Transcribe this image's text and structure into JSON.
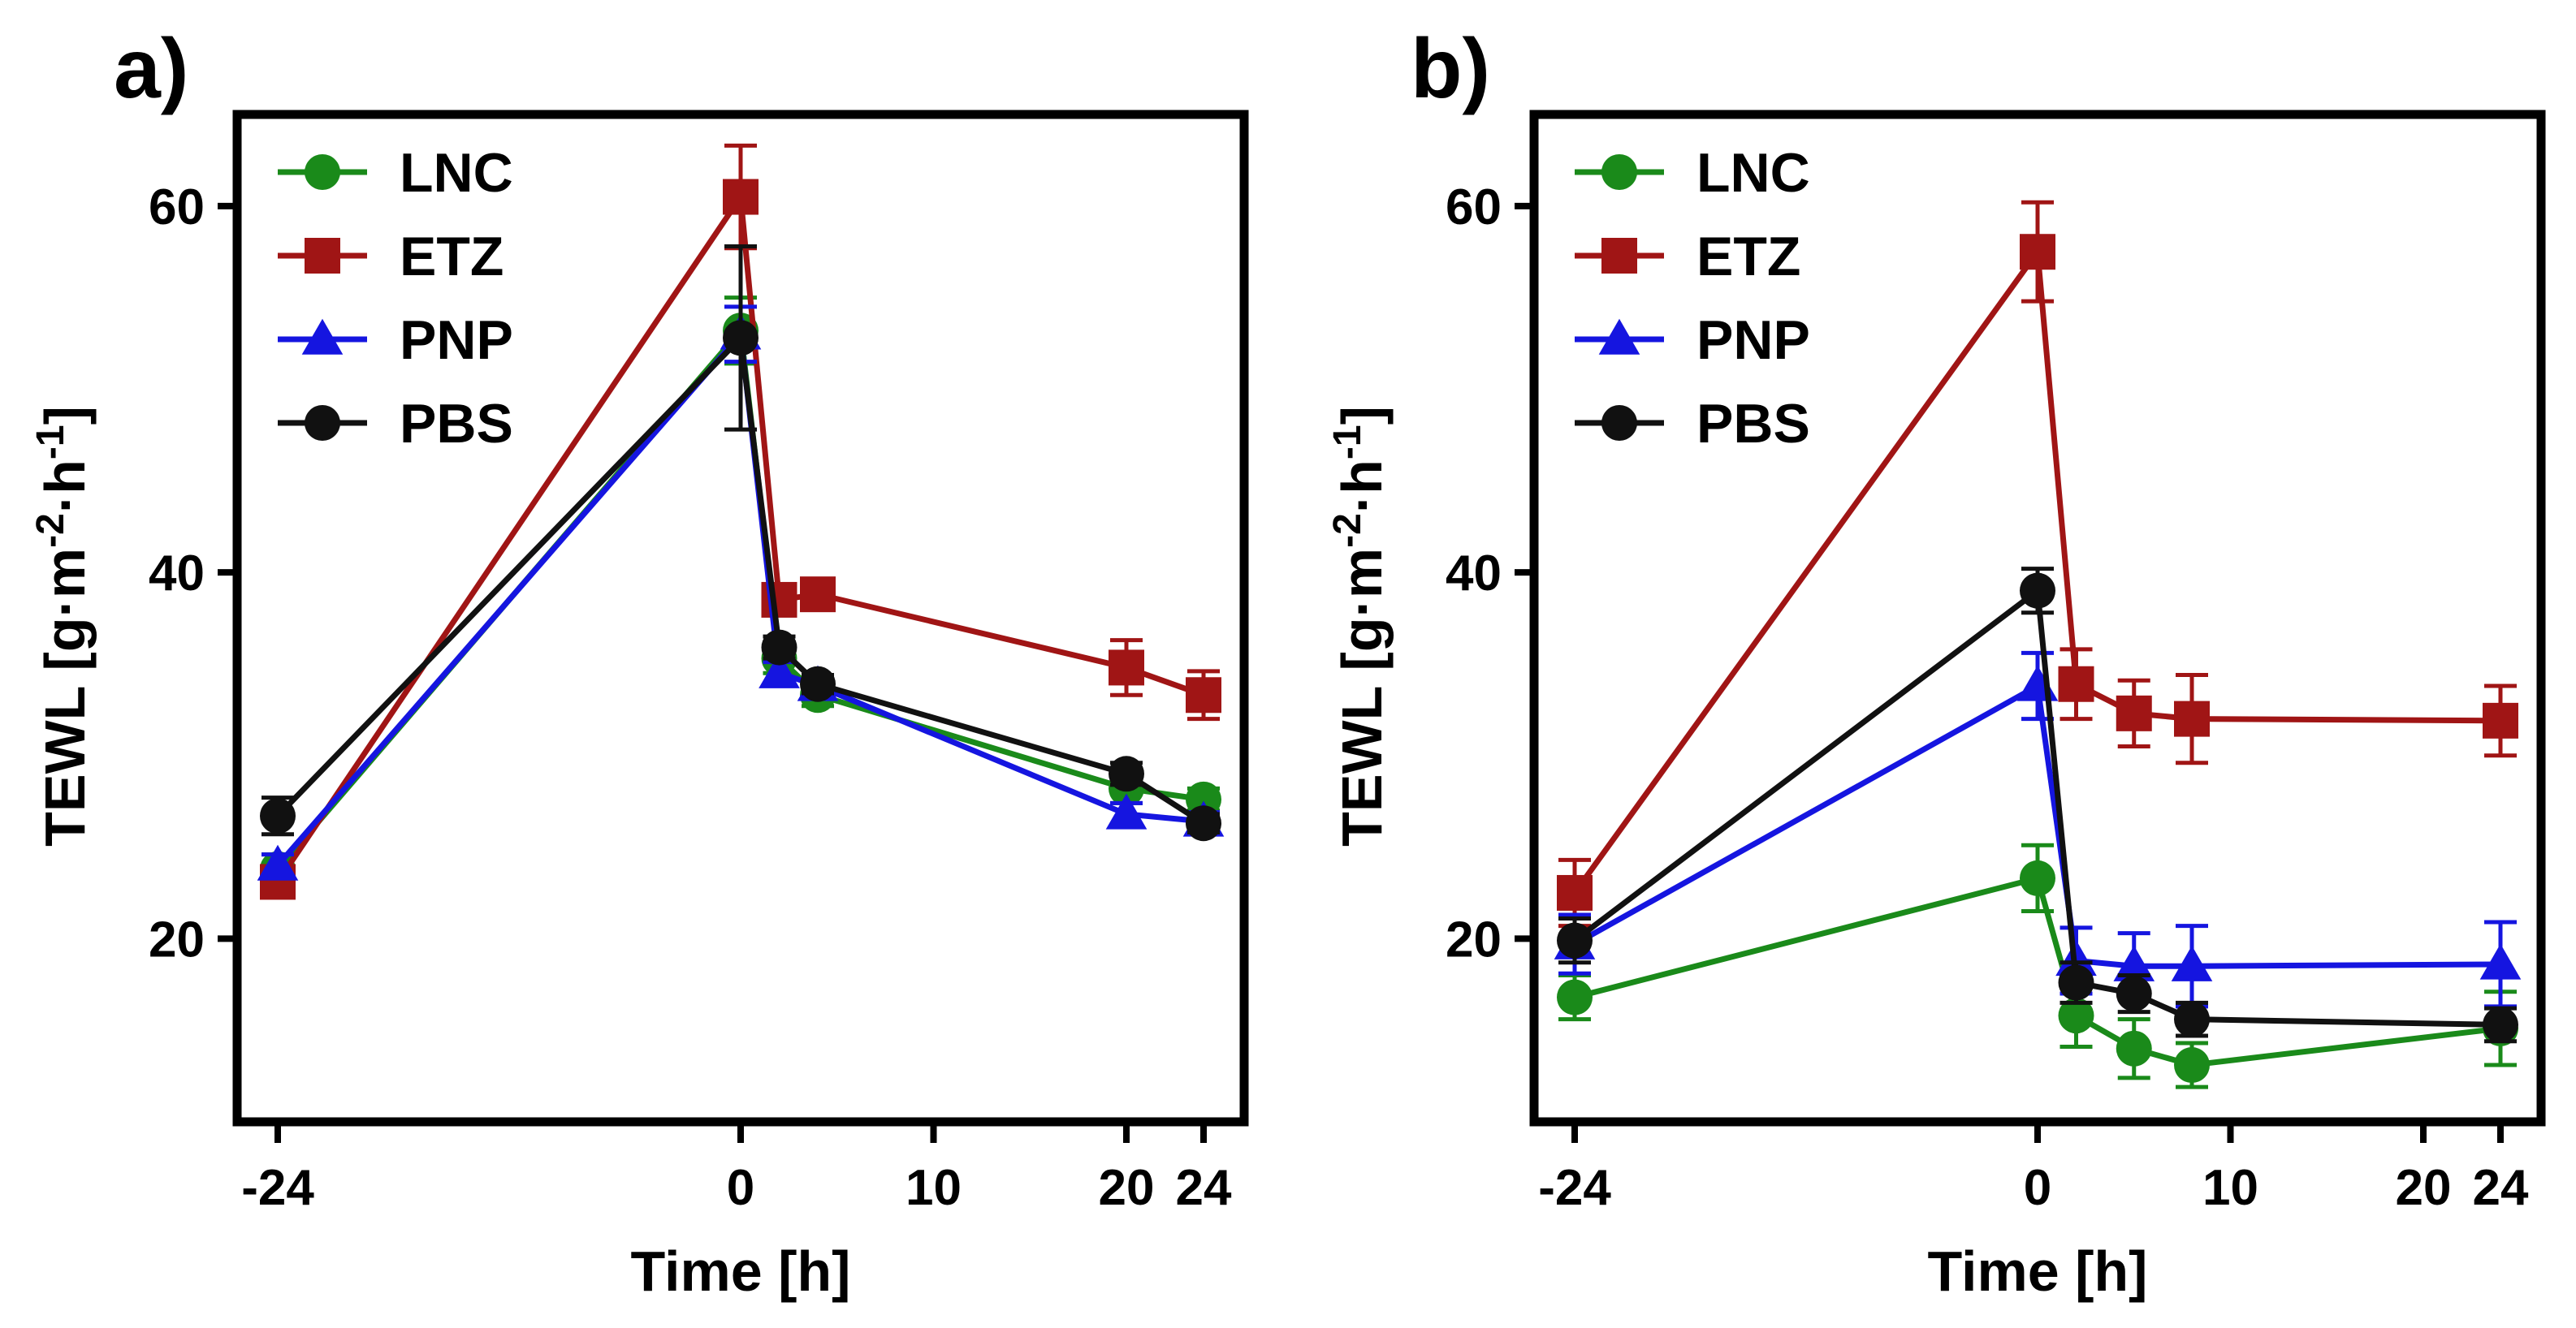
{
  "chart_data": [
    {
      "panel_label": "a)",
      "type": "line",
      "xlabel": "Time [h]",
      "ylabel_parts": [
        "TEWL [g·m",
        "-2",
        "·h",
        "-1",
        "]"
      ],
      "xlim": [
        -24,
        24
      ],
      "ylim": [
        10,
        65
      ],
      "xticks": [
        -24,
        0,
        10,
        20,
        24
      ],
      "yticks": [
        20,
        40,
        60
      ],
      "legend_position": "top-left",
      "series": [
        {
          "name": "LNC",
          "color": "#1a8a1a",
          "marker": "circle",
          "x": [
            -24,
            0,
            2,
            4,
            20,
            24
          ],
          "y": [
            23.8,
            53.2,
            35.3,
            33.3,
            28.2,
            27.6
          ],
          "err": [
            0.8,
            1.8,
            0.8,
            0.6,
            0.8,
            0.6
          ]
        },
        {
          "name": "ETZ",
          "color": "#a01515",
          "marker": "square",
          "x": [
            -24,
            0,
            2,
            4,
            20,
            24
          ],
          "y": [
            23.1,
            60.5,
            38.5,
            38.8,
            34.8,
            33.3
          ],
          "err": [
            0.5,
            2.8,
            0.6,
            0.5,
            1.5,
            1.3
          ]
        },
        {
          "name": "PNP",
          "color": "#1515e0",
          "marker": "triangle",
          "x": [
            -24,
            0,
            2,
            4,
            20,
            24
          ],
          "y": [
            24.0,
            53.0,
            34.5,
            33.8,
            26.8,
            26.4
          ],
          "err": [
            0.6,
            1.5,
            0.6,
            0.5,
            0.6,
            0.5
          ]
        },
        {
          "name": "PBS",
          "color": "#111111",
          "marker": "circle",
          "x": [
            -24,
            0,
            2,
            4,
            20,
            24
          ],
          "y": [
            26.7,
            52.8,
            35.9,
            33.9,
            29.0,
            26.3
          ],
          "err": [
            1.0,
            5.0,
            0.6,
            0.5,
            0.6,
            0.5
          ]
        }
      ]
    },
    {
      "panel_label": "b)",
      "type": "line",
      "xlabel": "Time [h]",
      "ylabel_parts": [
        "TEWL [g·m",
        "-2",
        "·h",
        "-1",
        "]"
      ],
      "xlim": [
        -24,
        24
      ],
      "ylim": [
        10,
        65
      ],
      "xticks": [
        -24,
        0,
        10,
        20,
        24
      ],
      "yticks": [
        20,
        40,
        60
      ],
      "legend_position": "top-left",
      "series": [
        {
          "name": "LNC",
          "color": "#1a8a1a",
          "marker": "circle",
          "x": [
            -24,
            0,
            2,
            5,
            8,
            24
          ],
          "y": [
            16.8,
            23.3,
            15.8,
            14.0,
            13.1,
            15.1
          ],
          "err": [
            1.2,
            1.8,
            1.7,
            1.6,
            1.2,
            2.0
          ]
        },
        {
          "name": "ETZ",
          "color": "#a01515",
          "marker": "square",
          "x": [
            -24,
            0,
            2,
            5,
            8,
            24
          ],
          "y": [
            22.5,
            57.5,
            33.9,
            32.3,
            32.0,
            31.9
          ],
          "err": [
            1.8,
            2.7,
            1.9,
            1.8,
            2.4,
            1.9
          ]
        },
        {
          "name": "PNP",
          "color": "#1515e0",
          "marker": "triangle",
          "x": [
            -24,
            0,
            2,
            5,
            8,
            24
          ],
          "y": [
            19.7,
            33.8,
            18.8,
            18.5,
            18.5,
            18.6
          ],
          "err": [
            1.6,
            1.8,
            1.8,
            1.8,
            2.2,
            2.3
          ]
        },
        {
          "name": "PBS",
          "color": "#111111",
          "marker": "circle",
          "x": [
            -24,
            0,
            2,
            5,
            8,
            24
          ],
          "y": [
            19.9,
            39.0,
            17.6,
            17.0,
            15.6,
            15.3
          ],
          "err": [
            1.2,
            1.2,
            1.1,
            1.0,
            0.9,
            0.9
          ]
        }
      ]
    }
  ]
}
